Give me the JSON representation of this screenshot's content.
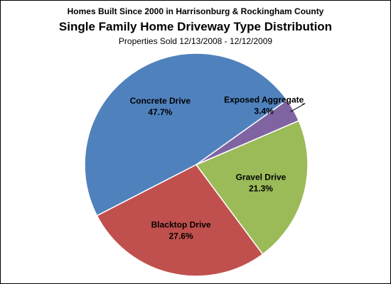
{
  "chart_data": {
    "type": "pie",
    "title_line1": "Homes Built Since  2000 in Harrisonburg & Rockingham  County",
    "title": "Single Family Home Driveway Type Distribution",
    "subtitle": "Properties Sold 12/13/2008 - 12/12/2009",
    "slices": [
      {
        "label": "Concrete Drive",
        "pct_text": "47.7%",
        "value": 47.7,
        "color": "#4f81bd"
      },
      {
        "label": "Blacktop Drive",
        "pct_text": "27.6%",
        "value": 27.6,
        "color": "#c0504d"
      },
      {
        "label": "Gravel Drive",
        "pct_text": "21.3%",
        "value": 21.3,
        "color": "#9bbb59"
      },
      {
        "label": "Exposed Aggregate",
        "pct_text": "3.4%",
        "value": 3.4,
        "color": "#8064a2"
      }
    ]
  }
}
